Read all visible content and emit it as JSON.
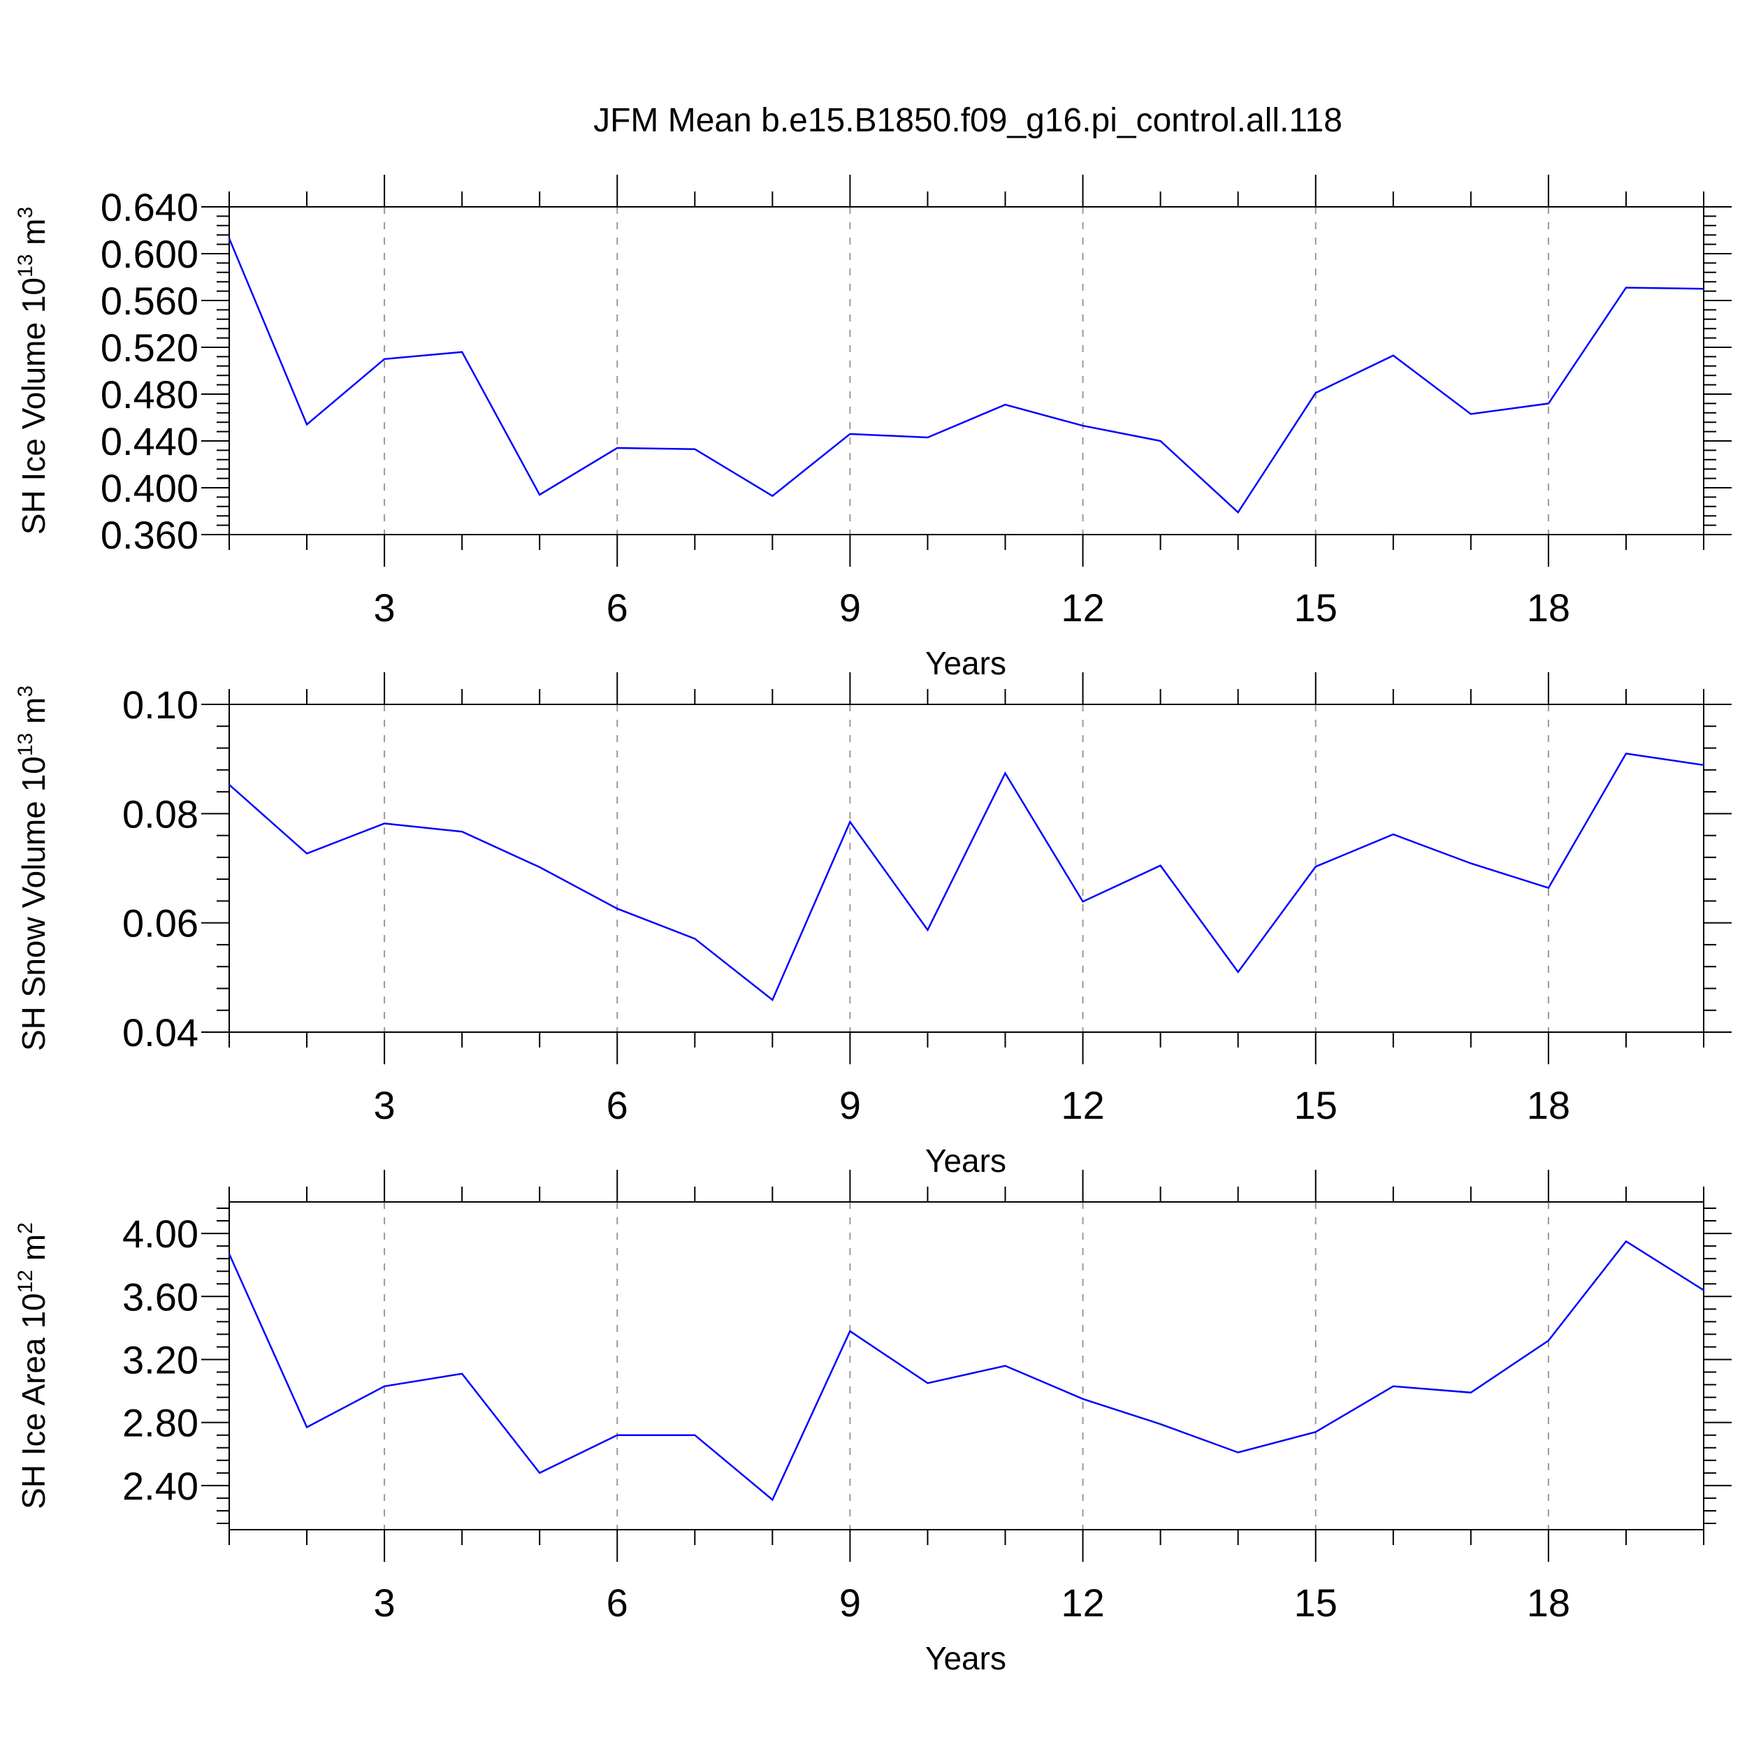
{
  "title": "JFM Mean b.e15.B1850.f09_g16.pi_control.all.118",
  "colors": {
    "line": "#0000ff",
    "axis": "#000000",
    "grid": "#999999"
  },
  "chart_data": [
    {
      "type": "line",
      "xlabel": "Years",
      "ylabel": {
        "text": "SH Ice Volume 10",
        "exp": "13",
        "unit": " m",
        "unit_exp": "3"
      },
      "xlim": [
        1,
        20
      ],
      "xticks": [
        3,
        6,
        9,
        12,
        15,
        18
      ],
      "xtick_labels": [
        "3",
        "6",
        "9",
        "12",
        "15",
        "18"
      ],
      "ylim": [
        0.36,
        0.64
      ],
      "yticks": [
        0.36,
        0.4,
        0.44,
        0.48,
        0.52,
        0.56,
        0.6,
        0.64
      ],
      "ytick_labels": [
        "0.360",
        "0.400",
        "0.440",
        "0.480",
        "0.520",
        "0.560",
        "0.600",
        "0.640"
      ],
      "grid": "x-dashed",
      "x": [
        1,
        2,
        3,
        4,
        5,
        6,
        7,
        8,
        9,
        10,
        11,
        12,
        13,
        14,
        15,
        16,
        17,
        18,
        19,
        20
      ],
      "values": [
        0.613,
        0.454,
        0.51,
        0.516,
        0.394,
        0.434,
        0.433,
        0.393,
        0.446,
        0.443,
        0.471,
        0.453,
        0.44,
        0.379,
        0.481,
        0.513,
        0.463,
        0.472,
        0.571,
        0.57
      ]
    },
    {
      "type": "line",
      "xlabel": "Years",
      "ylabel": {
        "text": "SH Snow Volume 10",
        "exp": "13",
        "unit": " m",
        "unit_exp": "3"
      },
      "xlim": [
        1,
        20
      ],
      "xticks": [
        3,
        6,
        9,
        12,
        15,
        18
      ],
      "xtick_labels": [
        "3",
        "6",
        "9",
        "12",
        "15",
        "18"
      ],
      "ylim": [
        0.04,
        0.1
      ],
      "yticks": [
        0.04,
        0.06,
        0.08,
        0.1
      ],
      "ytick_labels": [
        "0.04",
        "0.06",
        "0.08",
        "0.10"
      ],
      "grid": "x-dashed",
      "x": [
        1,
        2,
        3,
        4,
        5,
        6,
        7,
        8,
        9,
        10,
        11,
        12,
        13,
        14,
        15,
        16,
        17,
        18,
        19,
        20
      ],
      "values": [
        0.0853,
        0.0727,
        0.0782,
        0.0767,
        0.0702,
        0.0626,
        0.0571,
        0.0459,
        0.0785,
        0.0587,
        0.0874,
        0.0639,
        0.0705,
        0.051,
        0.0703,
        0.0762,
        0.0709,
        0.0664,
        0.091,
        0.0889
      ]
    },
    {
      "type": "line",
      "xlabel": "Years",
      "ylabel": {
        "text": "SH Ice Area 10",
        "exp": "12",
        "unit": " m",
        "unit_exp": "2"
      },
      "xlim": [
        1,
        20
      ],
      "xticks": [
        3,
        6,
        9,
        12,
        15,
        18
      ],
      "xtick_labels": [
        "3",
        "6",
        "9",
        "12",
        "15",
        "18"
      ],
      "ylim": [
        2.12,
        4.2
      ],
      "yticks": [
        2.4,
        2.8,
        3.2,
        3.6,
        4.0
      ],
      "ytick_labels": [
        "2.40",
        "2.80",
        "3.20",
        "3.60",
        "4.00"
      ],
      "grid": "x-dashed",
      "x": [
        1,
        2,
        3,
        4,
        5,
        6,
        7,
        8,
        9,
        10,
        11,
        12,
        13,
        14,
        15,
        16,
        17,
        18,
        19,
        20
      ],
      "values": [
        3.87,
        2.77,
        3.03,
        3.11,
        2.48,
        2.72,
        2.72,
        2.31,
        3.38,
        3.05,
        3.16,
        2.95,
        2.79,
        2.61,
        2.74,
        3.03,
        2.99,
        3.32,
        3.95,
        3.64
      ]
    }
  ]
}
